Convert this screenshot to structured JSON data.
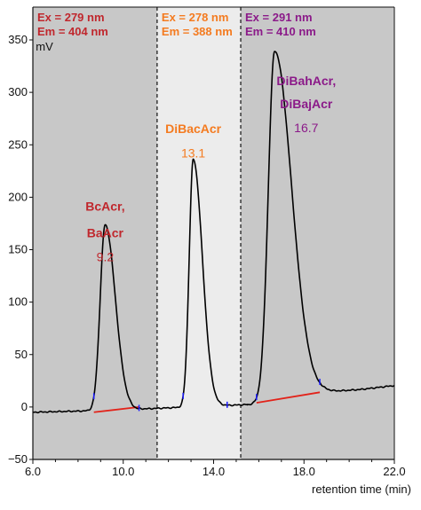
{
  "chart_data": {
    "type": "line",
    "xlabel": "retention time (min)",
    "ylabel": "mV",
    "xlim": [
      6.0,
      22.0
    ],
    "ylim": [
      -50,
      350
    ],
    "x_ticks": [
      6.0,
      10.0,
      14.0,
      18.0,
      22.0
    ],
    "x_tick_labels": [
      "6.0",
      "10.0",
      "14.0",
      "18.0",
      "22.0"
    ],
    "y_ticks": [
      -50,
      0,
      50,
      100,
      150,
      200,
      250,
      300,
      350
    ],
    "y_tick_labels": [
      "−50",
      "0",
      "50",
      "100",
      "150",
      "200",
      "250",
      "300",
      "350"
    ],
    "regions": [
      {
        "x_start": 6.0,
        "x_end": 11.5,
        "shade": "#c8c8c8",
        "line1": "Ex = 279 nm",
        "line2": "Em = 404 nm",
        "color": "#c0272d"
      },
      {
        "x_start": 11.5,
        "x_end": 15.2,
        "shade": "#ececec",
        "line1": "Ex = 278 nm",
        "line2": "Em = 388 nm",
        "color": "#f47b20"
      },
      {
        "x_start": 15.2,
        "x_end": 22.0,
        "shade": "#c8c8c8",
        "line1": "Ex = 291 nm",
        "line2": "Em = 410 nm",
        "color": "#8b1a89"
      }
    ],
    "boundaries": [
      11.5,
      15.2
    ],
    "peaks": [
      {
        "label_line1": "BcAcr,",
        "label_line2": "BaAcr",
        "time_label": "9.2",
        "rt": 9.2,
        "height": 177,
        "width_left": 0.22,
        "width_right": 0.45,
        "label_y": [
          187,
          162,
          139
        ],
        "label_x": 9.2,
        "color": "#c0272d"
      },
      {
        "label_line1": "DiBacAcr",
        "label_line2": "",
        "time_label": "13.1",
        "rt": 13.1,
        "height": 236,
        "width_left": 0.18,
        "width_right": 0.4,
        "label_y": [
          261,
          238
        ],
        "label_x": 13.1,
        "color": "#f47b20"
      },
      {
        "label_line1": "DiBahAcr,",
        "label_line2": "DiBajAcr",
        "time_label": "16.7",
        "rt": 16.7,
        "height": 333,
        "width_left": 0.28,
        "width_right": 0.75,
        "label_y": [
          307,
          285,
          262
        ],
        "label_x": 18.1,
        "color": "#8b1a89"
      }
    ],
    "baseline_segments": [
      {
        "x": [
          8.7,
          10.7
        ],
        "y": [
          -5,
          0
        ]
      },
      {
        "x": [
          15.9,
          18.7
        ],
        "y": [
          4,
          14
        ]
      }
    ],
    "baseline_color": "#e2231a",
    "integration_marks": [
      8.7,
      10.7,
      12.65,
      14.6,
      15.9,
      18.7
    ],
    "integration_mark_color": "#1a1aff",
    "trace_color": "#000000"
  }
}
